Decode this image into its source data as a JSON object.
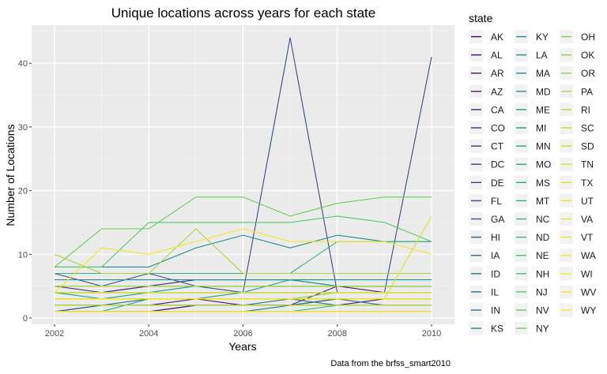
{
  "chart_data": {
    "type": "line",
    "title": "Unique locations across years for each state",
    "xlabel": "Years",
    "ylabel": "Number of Locations",
    "caption": "Data from the brfss_smart2010",
    "xlim": [
      2002,
      2010
    ],
    "ylim": [
      0,
      45
    ],
    "x_ticks": [
      2002,
      2004,
      2006,
      2008,
      2010
    ],
    "y_ticks": [
      0,
      10,
      20,
      30,
      40
    ],
    "grid": true,
    "legend": {
      "title": "state",
      "position": "right",
      "columns": 3
    },
    "x": [
      2002,
      2003,
      2004,
      2005,
      2006,
      2007,
      2008,
      2009,
      2010
    ],
    "series": [
      {
        "name": "AK",
        "color": "#440154",
        "values": [
          1,
          1,
          1,
          1,
          1,
          1,
          1,
          1,
          1
        ]
      },
      {
        "name": "AL",
        "color": "#46085C",
        "values": [
          1,
          1,
          1,
          2,
          2,
          2,
          3,
          3,
          3
        ]
      },
      {
        "name": "AR",
        "color": "#471063",
        "values": [
          1,
          2,
          2,
          2,
          2,
          2,
          3,
          3,
          3
        ]
      },
      {
        "name": "AZ",
        "color": "#48186A",
        "values": [
          2,
          2,
          2,
          3,
          2,
          2,
          2,
          3,
          3
        ]
      },
      {
        "name": "CA",
        "color": "#472073",
        "values": [
          1,
          1,
          1,
          2,
          2,
          2,
          5,
          4,
          4
        ]
      },
      {
        "name": "CO",
        "color": "#46287A",
        "values": [
          4,
          4,
          5,
          6,
          6,
          6,
          5,
          5,
          5
        ]
      },
      {
        "name": "CT",
        "color": "#453080",
        "values": [
          5,
          4,
          5,
          5,
          5,
          5,
          5,
          5,
          5
        ]
      },
      {
        "name": "DC",
        "color": "#423785",
        "values": [
          1,
          1,
          1,
          1,
          1,
          1,
          1,
          1,
          1
        ]
      },
      {
        "name": "DE",
        "color": "#3F3F89",
        "values": [
          3,
          3,
          3,
          3,
          3,
          3,
          3,
          3,
          3
        ]
      },
      {
        "name": "FL",
        "color": "#3C4A8A",
        "values": [
          7,
          5,
          7,
          5,
          4,
          44,
          4,
          4,
          41
        ]
      },
      {
        "name": "GA",
        "color": "#38528C",
        "values": [
          4,
          4,
          4,
          4,
          4,
          4,
          4,
          4,
          4
        ]
      },
      {
        "name": "HI",
        "color": "#355E8D",
        "values": [
          4,
          4,
          4,
          4,
          4,
          4,
          4,
          4,
          4
        ]
      },
      {
        "name": "IA",
        "color": "#31668E",
        "values": [
          1,
          2,
          2,
          2,
          2,
          2,
          3,
          2,
          2
        ]
      },
      {
        "name": "ID",
        "color": "#2E6D8E",
        "values": [
          2,
          2,
          3,
          3,
          3,
          3,
          2,
          2,
          2
        ]
      },
      {
        "name": "IL",
        "color": "#2C728E",
        "values": [
          2,
          2,
          2,
          2,
          2,
          3,
          3,
          3,
          3
        ]
      },
      {
        "name": "IN",
        "color": "#2A788E",
        "values": [
          1,
          1,
          1,
          1,
          1,
          2,
          3,
          3,
          3
        ]
      },
      {
        "name": "KS",
        "color": "#287D8E",
        "values": [
          3,
          3,
          3,
          3,
          3,
          3,
          3,
          3,
          3
        ]
      },
      {
        "name": "KY",
        "color": "#26828E",
        "values": [
          3,
          3,
          3,
          3,
          3,
          3,
          3,
          3,
          3
        ]
      },
      {
        "name": "LA",
        "color": "#24868E",
        "values": [
          3,
          3,
          3,
          3,
          3,
          3,
          3,
          3,
          3
        ]
      },
      {
        "name": "MA",
        "color": "#228B8D",
        "values": [
          8,
          8,
          8,
          11,
          13,
          11,
          13,
          12,
          12
        ]
      },
      {
        "name": "MD",
        "color": "#20918C",
        "values": [
          6,
          6,
          6,
          6,
          6,
          6,
          6,
          6,
          6
        ]
      },
      {
        "name": "ME",
        "color": "#1F968B",
        "values": [
          5,
          5,
          5,
          5,
          5,
          5,
          5,
          5,
          5
        ]
      },
      {
        "name": "MI",
        "color": "#1F9A8A",
        "values": [
          4,
          4,
          4,
          4,
          4,
          4,
          4,
          4,
          4
        ]
      },
      {
        "name": "MN",
        "color": "#1FA088",
        "values": [
          4,
          3,
          4,
          5,
          5,
          5,
          5,
          5,
          5
        ]
      },
      {
        "name": "MO",
        "color": "#21A585",
        "values": [
          1,
          1,
          3,
          3,
          4,
          6,
          5,
          5,
          5
        ]
      },
      {
        "name": "MS",
        "color": "#25AB82",
        "values": [
          2,
          2,
          2,
          2,
          2,
          2,
          2,
          2,
          2
        ]
      },
      {
        "name": "MT",
        "color": "#2AB07F",
        "values": [
          1,
          1,
          1,
          1,
          1,
          1,
          1,
          1,
          1
        ]
      },
      {
        "name": "NC",
        "color": "#31B57B",
        "values": [
          7,
          7,
          7,
          7,
          7,
          7,
          12,
          12,
          12
        ]
      },
      {
        "name": "ND",
        "color": "#39BA76",
        "values": [
          1,
          1,
          1,
          1,
          1,
          1,
          2,
          2,
          2
        ]
      },
      {
        "name": "NE",
        "color": "#42BE71",
        "values": [
          2,
          2,
          2,
          2,
          2,
          2,
          2,
          2,
          2
        ]
      },
      {
        "name": "NH",
        "color": "#4CC26C",
        "values": [
          5,
          5,
          5,
          5,
          5,
          5,
          5,
          5,
          5
        ]
      },
      {
        "name": "NJ",
        "color": "#56C667",
        "values": [
          8,
          8,
          15,
          15,
          15,
          15,
          16,
          15,
          12
        ]
      },
      {
        "name": "NV",
        "color": "#62CB5F",
        "values": [
          1,
          1,
          1,
          1,
          1,
          1,
          1,
          1,
          1
        ]
      },
      {
        "name": "NY",
        "color": "#6DCD59",
        "values": [
          8,
          14,
          14,
          19,
          19,
          16,
          18,
          19,
          19
        ]
      },
      {
        "name": "OH",
        "color": "#79D151",
        "values": [
          4,
          4,
          4,
          4,
          4,
          4,
          4,
          4,
          4
        ]
      },
      {
        "name": "OK",
        "color": "#85D44A",
        "values": [
          3,
          3,
          3,
          3,
          3,
          3,
          3,
          3,
          3
        ]
      },
      {
        "name": "OR",
        "color": "#93D741",
        "values": [
          3,
          3,
          3,
          3,
          3,
          3,
          4,
          4,
          4
        ]
      },
      {
        "name": "PA",
        "color": "#A0DA39",
        "values": [
          10,
          7,
          7,
          14,
          7,
          7,
          7,
          7,
          7
        ]
      },
      {
        "name": "RI",
        "color": "#ADDC30",
        "values": [
          5,
          5,
          5,
          5,
          5,
          5,
          5,
          5,
          5
        ]
      },
      {
        "name": "SC",
        "color": "#BBDF27",
        "values": [
          3,
          3,
          3,
          3,
          3,
          3,
          3,
          3,
          3
        ]
      },
      {
        "name": "SD",
        "color": "#C8E020",
        "values": [
          2,
          2,
          2,
          2,
          2,
          2,
          2,
          2,
          2
        ]
      },
      {
        "name": "TN",
        "color": "#D6E21A",
        "values": [
          1,
          1,
          1,
          1,
          1,
          1,
          1,
          1,
          1
        ]
      },
      {
        "name": "TX",
        "color": "#E2E418",
        "values": [
          3,
          3,
          3,
          3,
          3,
          3,
          3,
          3,
          16
        ]
      },
      {
        "name": "UT",
        "color": "#EBE51A",
        "values": [
          3,
          3,
          3,
          3,
          3,
          3,
          3,
          3,
          3
        ]
      },
      {
        "name": "VA",
        "color": "#F1E51D",
        "values": [
          4,
          4,
          4,
          4,
          4,
          4,
          4,
          4,
          4
        ]
      },
      {
        "name": "VT",
        "color": "#F5E61F",
        "values": [
          3,
          3,
          3,
          3,
          3,
          3,
          3,
          3,
          3
        ]
      },
      {
        "name": "WA",
        "color": "#F8E622",
        "values": [
          4,
          11,
          10,
          12,
          14,
          12,
          12,
          12,
          10
        ]
      },
      {
        "name": "WI",
        "color": "#FAE723",
        "values": [
          1,
          1,
          1,
          1,
          1,
          1,
          1,
          1,
          1
        ]
      },
      {
        "name": "WV",
        "color": "#FCE724",
        "values": [
          1,
          1,
          1,
          1,
          1,
          1,
          1,
          1,
          1
        ]
      },
      {
        "name": "WY",
        "color": "#FDE725",
        "values": [
          1,
          1,
          1,
          1,
          1,
          1,
          1,
          1,
          1
        ]
      }
    ]
  }
}
